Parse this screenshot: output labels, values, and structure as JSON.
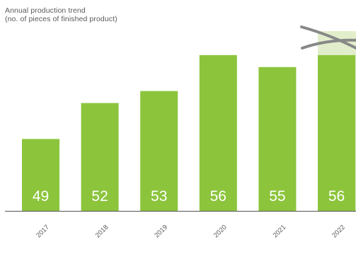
{
  "chart_data": {
    "type": "bar",
    "title_lines": [
      "Annual production trend",
      "(no. of pieces of finished product)"
    ],
    "categories": [
      "2017",
      "2018",
      "2019",
      "2020",
      "2021",
      "2022"
    ],
    "values": [
      49,
      52,
      53,
      56,
      55,
      56
    ],
    "value_labels": [
      "49",
      "52",
      "53",
      "56",
      "55",
      "56"
    ],
    "ylim": [
      43,
      58
    ],
    "grid": false,
    "legend": "none",
    "highlight_category": "2022",
    "colors": {
      "bar": "#8cc43c",
      "bar_highlight_bg": "#e2eecb",
      "value_label": "#ffffff",
      "axis": "#555555",
      "tick_label": "#5a5a5a",
      "cross": "#888888"
    }
  }
}
